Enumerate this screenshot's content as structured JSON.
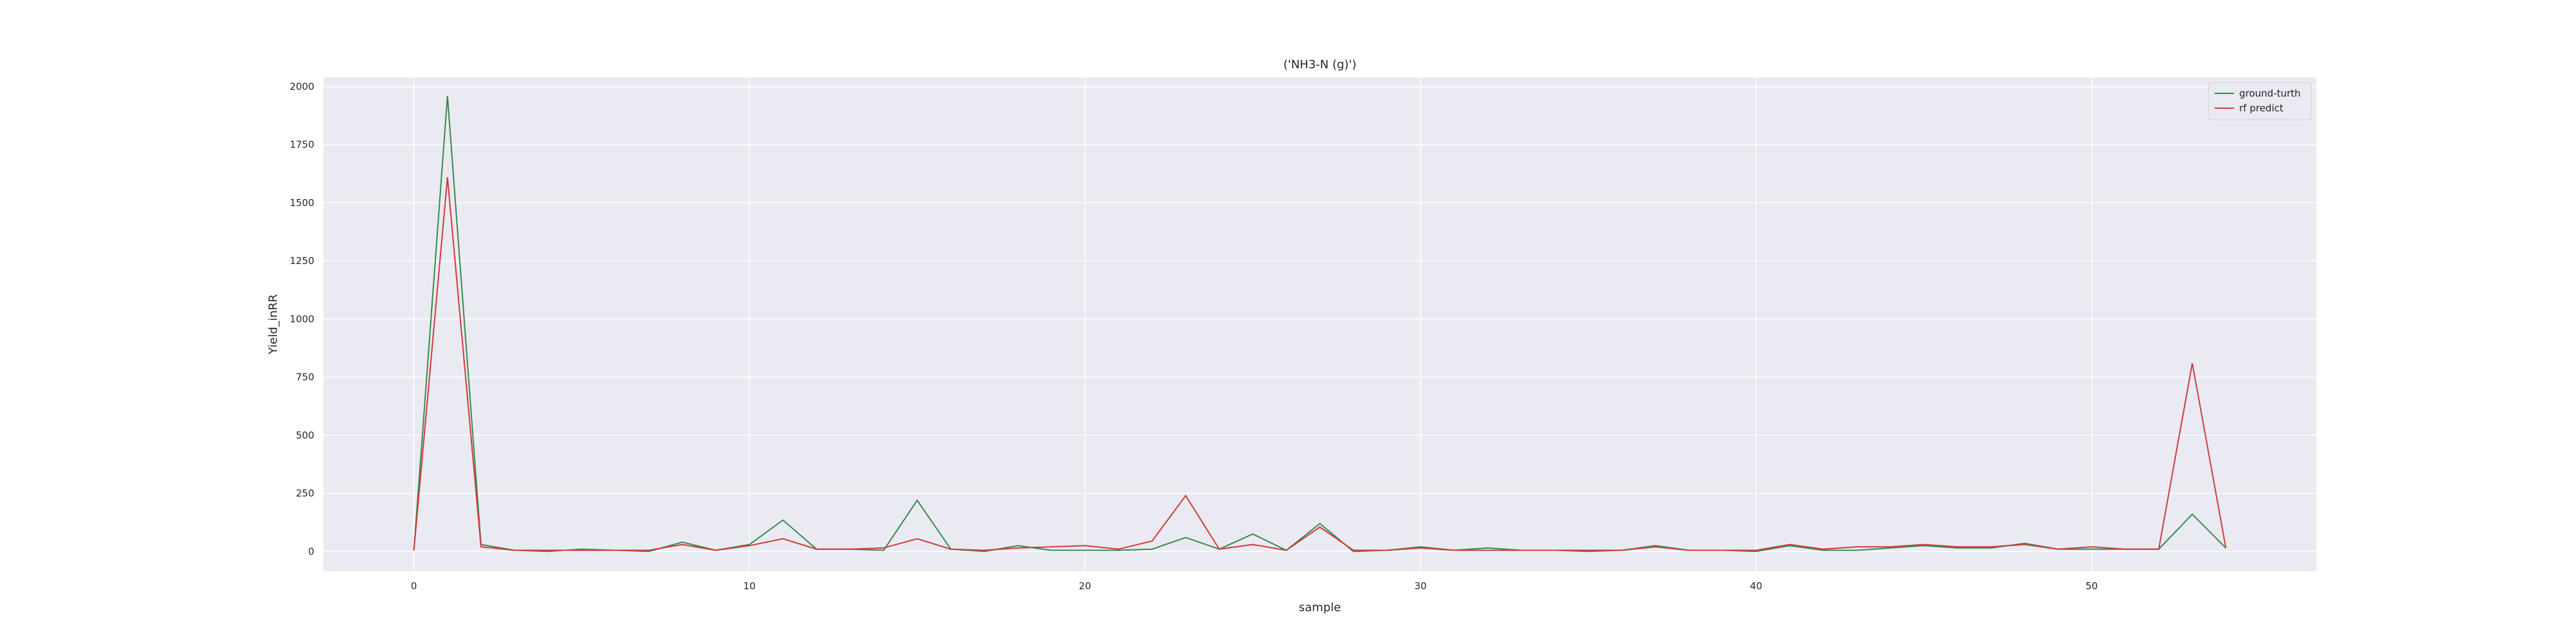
{
  "chart_data": {
    "type": "line",
    "title": "('NH3-N (g)')",
    "xlabel": "sample",
    "ylabel": "Yield_inRR",
    "xlim": [
      -2.7,
      56.7
    ],
    "ylim": [
      -85,
      2040
    ],
    "xticks": [
      0,
      10,
      20,
      30,
      40,
      50
    ],
    "yticks": [
      0,
      250,
      500,
      750,
      1000,
      1250,
      1500,
      1750,
      2000
    ],
    "grid": true,
    "legend_position": "top-right",
    "background_color": "#eaeaf2",
    "grid_color": "#ffffff",
    "series": [
      {
        "name": "ground-turth",
        "color": "#3a8a4f",
        "x": [
          0,
          1,
          2,
          3,
          4,
          5,
          6,
          7,
          8,
          9,
          10,
          11,
          12,
          13,
          14,
          15,
          16,
          17,
          18,
          19,
          20,
          21,
          22,
          23,
          24,
          25,
          26,
          27,
          28,
          29,
          30,
          31,
          32,
          33,
          34,
          35,
          36,
          37,
          38,
          39,
          40,
          41,
          42,
          43,
          44,
          45,
          46,
          47,
          48,
          49,
          50,
          51,
          52,
          53,
          54
        ],
        "values": [
          5,
          1960,
          30,
          5,
          0,
          10,
          5,
          0,
          40,
          5,
          30,
          135,
          10,
          10,
          5,
          220,
          10,
          0,
          25,
          5,
          5,
          5,
          10,
          60,
          10,
          75,
          5,
          120,
          0,
          5,
          20,
          5,
          15,
          5,
          5,
          0,
          5,
          25,
          5,
          5,
          0,
          25,
          5,
          5,
          15,
          25,
          15,
          15,
          35,
          10,
          10,
          10,
          10,
          160,
          15
        ]
      },
      {
        "name": "rf predict",
        "color": "#d03b3b",
        "x": [
          0,
          1,
          2,
          3,
          4,
          5,
          6,
          7,
          8,
          9,
          10,
          11,
          12,
          13,
          14,
          15,
          16,
          17,
          18,
          19,
          20,
          21,
          22,
          23,
          24,
          25,
          26,
          27,
          28,
          29,
          30,
          31,
          32,
          33,
          34,
          35,
          36,
          37,
          38,
          39,
          40,
          41,
          42,
          43,
          44,
          45,
          46,
          47,
          48,
          49,
          50,
          51,
          52,
          53,
          54
        ],
        "values": [
          5,
          1610,
          20,
          5,
          5,
          5,
          5,
          5,
          30,
          5,
          25,
          55,
          10,
          10,
          15,
          55,
          10,
          5,
          15,
          20,
          25,
          10,
          45,
          240,
          10,
          30,
          5,
          105,
          5,
          5,
          15,
          5,
          5,
          5,
          5,
          5,
          5,
          20,
          5,
          5,
          5,
          30,
          10,
          20,
          20,
          30,
          20,
          20,
          30,
          10,
          20,
          10,
          10,
          810,
          15
        ]
      }
    ]
  }
}
